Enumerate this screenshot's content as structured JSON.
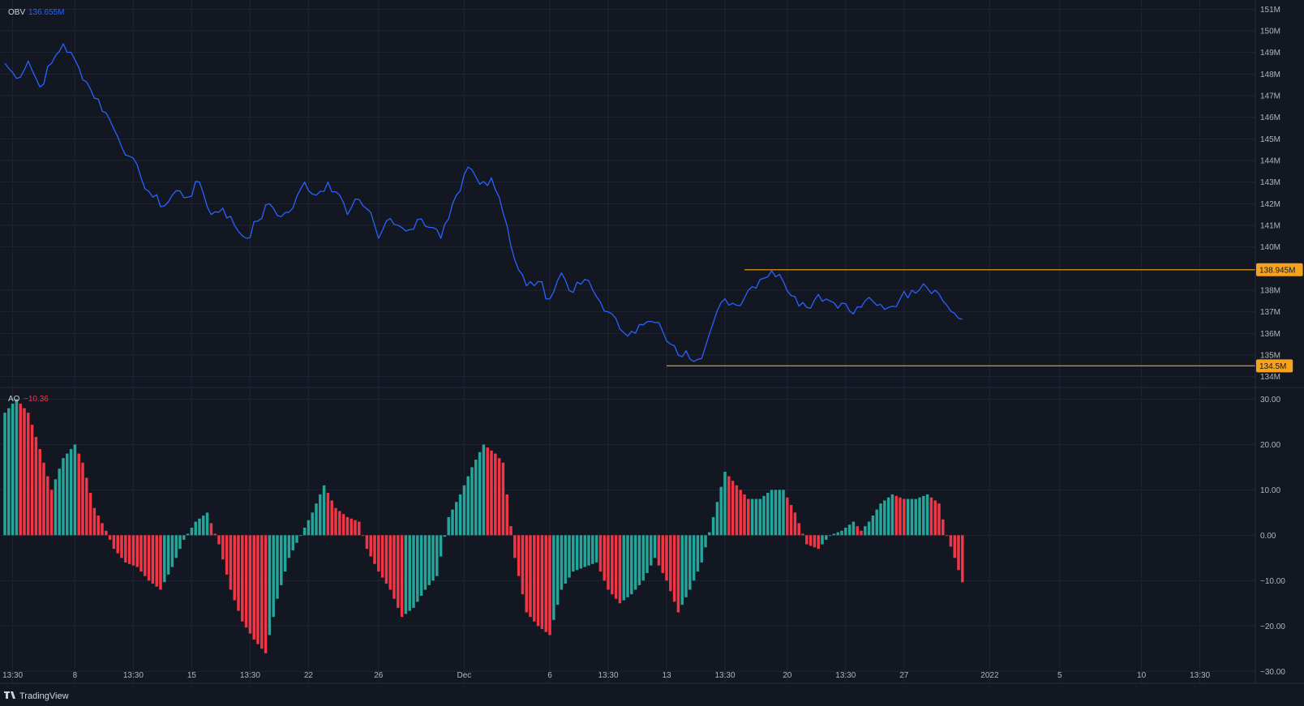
{
  "brand": {
    "name": "TradingView",
    "logo": "tradingview-logo"
  },
  "colors": {
    "background": "#131722",
    "grid": "#1f2433",
    "obv_line": "#2962ff",
    "ao_up": "#26a69a",
    "ao_down": "#f23645",
    "level_line": "#f7a21b",
    "axis_text": "#b2b5be"
  },
  "panes": {
    "obv": {
      "name": "OBV",
      "value": "136.655M"
    },
    "ao": {
      "name": "AO",
      "value": "−10.36"
    }
  },
  "chart_data": [
    {
      "type": "line",
      "name": "OBV",
      "y_unit": "M",
      "ylim": [
        133.8,
        151.2
      ],
      "grid": true,
      "y_ticks": [
        {
          "value": 151,
          "label": "151M"
        },
        {
          "value": 150,
          "label": "150M"
        },
        {
          "value": 149,
          "label": "149M"
        },
        {
          "value": 148,
          "label": "148M"
        },
        {
          "value": 147,
          "label": "147M"
        },
        {
          "value": 146,
          "label": "146M"
        },
        {
          "value": 145,
          "label": "145M"
        },
        {
          "value": 144,
          "label": "144M"
        },
        {
          "value": 143,
          "label": "143M"
        },
        {
          "value": 142,
          "label": "142M"
        },
        {
          "value": 141,
          "label": "141M"
        },
        {
          "value": 140,
          "label": "140M"
        },
        {
          "value": 138,
          "label": "138M"
        },
        {
          "value": 137,
          "label": "137M"
        },
        {
          "value": 136,
          "label": "136M"
        },
        {
          "value": 135,
          "label": "135M"
        },
        {
          "value": 134,
          "label": "134M"
        }
      ],
      "keypoints": [
        [
          0,
          148.5
        ],
        [
          3,
          147.8
        ],
        [
          6,
          148.6
        ],
        [
          9,
          147.4
        ],
        [
          12,
          148.5
        ],
        [
          15,
          149.4
        ],
        [
          19,
          148.3
        ],
        [
          22,
          147.3
        ],
        [
          26,
          146.2
        ],
        [
          29,
          145.1
        ],
        [
          32,
          144.2
        ],
        [
          35,
          143.2
        ],
        [
          38,
          142.3
        ],
        [
          41,
          141.9
        ],
        [
          44,
          142.6
        ],
        [
          47,
          142.3
        ],
        [
          50,
          143.0
        ],
        [
          53,
          141.5
        ],
        [
          56,
          141.8
        ],
        [
          59,
          141.0
        ],
        [
          62,
          140.4
        ],
        [
          65,
          141.2
        ],
        [
          68,
          142.0
        ],
        [
          71,
          141.4
        ],
        [
          74,
          141.8
        ],
        [
          77,
          143.0
        ],
        [
          80,
          142.4
        ],
        [
          83,
          143.0
        ],
        [
          86,
          142.4
        ],
        [
          88,
          141.5
        ],
        [
          91,
          142.2
        ],
        [
          94,
          141.6
        ],
        [
          96,
          140.4
        ],
        [
          98,
          141.2
        ],
        [
          101,
          141.0
        ],
        [
          104,
          140.8
        ],
        [
          107,
          141.3
        ],
        [
          110,
          140.9
        ],
        [
          112,
          140.4
        ],
        [
          114,
          141.3
        ],
        [
          117,
          142.6
        ],
        [
          119,
          143.7
        ],
        [
          122,
          142.9
        ],
        [
          125,
          143.2
        ],
        [
          127,
          142.3
        ],
        [
          129,
          141.0
        ],
        [
          131,
          139.4
        ],
        [
          134,
          138.2
        ],
        [
          137,
          138.4
        ],
        [
          140,
          137.6
        ],
        [
          143,
          138.8
        ],
        [
          146,
          137.9
        ],
        [
          149,
          138.5
        ],
        [
          152,
          137.7
        ],
        [
          155,
          137.0
        ],
        [
          158,
          136.2
        ],
        [
          161,
          136.1
        ],
        [
          164,
          136.4
        ],
        [
          167,
          136.5
        ],
        [
          169,
          136.1
        ],
        [
          171,
          135.5
        ],
        [
          173,
          135.0
        ],
        [
          175,
          135.2
        ],
        [
          178,
          134.8
        ],
        [
          180,
          135.4
        ],
        [
          182,
          136.5
        ],
        [
          185,
          137.6
        ],
        [
          188,
          137.3
        ],
        [
          191,
          138.0
        ],
        [
          194,
          138.5
        ],
        [
          197,
          138.9
        ],
        [
          200,
          138.4
        ],
        [
          203,
          137.7
        ],
        [
          206,
          137.2
        ],
        [
          209,
          137.8
        ],
        [
          212,
          137.5
        ],
        [
          215,
          137.4
        ],
        [
          218,
          136.9
        ],
        [
          221,
          137.5
        ],
        [
          224,
          137.3
        ],
        [
          227,
          137.2
        ],
        [
          230,
          137.6
        ],
        [
          233,
          138.0
        ],
        [
          236,
          138.3
        ],
        [
          239,
          138.0
        ],
        [
          242,
          137.3
        ],
        [
          245,
          136.7
        ],
        [
          246,
          136.655
        ]
      ],
      "n_points": 247,
      "levels": [
        {
          "value": 138.945,
          "label": "138.945M",
          "from_index": 190
        },
        {
          "value": 134.5,
          "label": "134.5M",
          "from_index": 170
        }
      ]
    },
    {
      "type": "bar",
      "name": "AO",
      "ylim": [
        -31.2,
        31.5
      ],
      "grid": true,
      "y_ticks": [
        {
          "value": 30,
          "label": "30.00"
        },
        {
          "value": 20,
          "label": "20.00"
        },
        {
          "value": 10,
          "label": "10.00"
        },
        {
          "value": 0,
          "label": "0.00"
        },
        {
          "value": -10,
          "label": "−10.00"
        },
        {
          "value": -20,
          "label": "−20.00"
        },
        {
          "value": -30,
          "label": "−30.00"
        }
      ],
      "keypoints": [
        [
          0,
          27
        ],
        [
          3,
          30
        ],
        [
          6,
          27
        ],
        [
          9,
          19
        ],
        [
          12,
          10
        ],
        [
          15,
          17
        ],
        [
          18,
          20
        ],
        [
          20,
          16
        ],
        [
          23,
          6
        ],
        [
          26,
          1
        ],
        [
          28,
          -3
        ],
        [
          31,
          -6
        ],
        [
          34,
          -7
        ],
        [
          37,
          -10
        ],
        [
          40,
          -12
        ],
        [
          43,
          -7
        ],
        [
          46,
          -1
        ],
        [
          49,
          3
        ],
        [
          52,
          5
        ],
        [
          55,
          -2
        ],
        [
          58,
          -12
        ],
        [
          61,
          -19
        ],
        [
          64,
          -23
        ],
        [
          67,
          -26
        ],
        [
          70,
          -14
        ],
        [
          73,
          -5
        ],
        [
          76,
          0
        ],
        [
          79,
          5
        ],
        [
          82,
          11
        ],
        [
          85,
          6
        ],
        [
          88,
          4
        ],
        [
          91,
          3
        ],
        [
          93,
          -3
        ],
        [
          96,
          -8
        ],
        [
          99,
          -12
        ],
        [
          102,
          -18
        ],
        [
          105,
          -16
        ],
        [
          108,
          -12
        ],
        [
          111,
          -9
        ],
        [
          114,
          4
        ],
        [
          117,
          9
        ],
        [
          120,
          15
        ],
        [
          123,
          20
        ],
        [
          126,
          18
        ],
        [
          128,
          16
        ],
        [
          131,
          -5
        ],
        [
          134,
          -17
        ],
        [
          137,
          -20
        ],
        [
          140,
          -22
        ],
        [
          143,
          -12
        ],
        [
          146,
          -8
        ],
        [
          149,
          -7
        ],
        [
          152,
          -6
        ],
        [
          155,
          -12
        ],
        [
          158,
          -15
        ],
        [
          161,
          -13
        ],
        [
          164,
          -10
        ],
        [
          167,
          -5
        ],
        [
          170,
          -10
        ],
        [
          173,
          -17
        ],
        [
          176,
          -12
        ],
        [
          179,
          -6
        ],
        [
          182,
          4
        ],
        [
          185,
          14
        ],
        [
          188,
          11
        ],
        [
          191,
          8
        ],
        [
          194,
          8
        ],
        [
          197,
          10
        ],
        [
          200,
          10
        ],
        [
          203,
          5
        ],
        [
          206,
          -2
        ],
        [
          209,
          -3
        ],
        [
          212,
          0
        ],
        [
          215,
          1
        ],
        [
          218,
          3
        ],
        [
          220,
          1
        ],
        [
          222,
          3
        ],
        [
          225,
          7
        ],
        [
          228,
          9
        ],
        [
          231,
          8
        ],
        [
          234,
          8
        ],
        [
          237,
          9
        ],
        [
          240,
          7
        ],
        [
          242,
          0
        ],
        [
          244,
          -5
        ],
        [
          246,
          -10.36
        ]
      ],
      "n_points": 247
    }
  ],
  "time_axis": {
    "total_slots": 323,
    "labels": [
      {
        "text": "13:30",
        "index": 2
      },
      {
        "text": "8",
        "index": 18
      },
      {
        "text": "13:30",
        "index": 33
      },
      {
        "text": "15",
        "index": 48
      },
      {
        "text": "13:30",
        "index": 63
      },
      {
        "text": "22",
        "index": 78
      },
      {
        "text": "26",
        "index": 96
      },
      {
        "text": "Dec",
        "index": 118
      },
      {
        "text": "6",
        "index": 140
      },
      {
        "text": "13:30",
        "index": 155
      },
      {
        "text": "13",
        "index": 170
      },
      {
        "text": "13:30",
        "index": 185
      },
      {
        "text": "20",
        "index": 201
      },
      {
        "text": "13:30",
        "index": 216
      },
      {
        "text": "27",
        "index": 231
      },
      {
        "text": "2022",
        "index": 253
      },
      {
        "text": "5",
        "index": 271
      },
      {
        "text": "10",
        "index": 292
      },
      {
        "text": "13:30",
        "index": 307
      }
    ]
  }
}
